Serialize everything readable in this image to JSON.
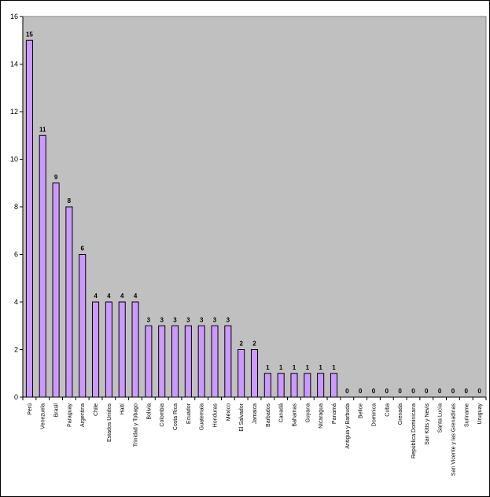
{
  "chart_data": {
    "type": "bar",
    "title": "",
    "xlabel": "",
    "ylabel": "",
    "ylim": [
      0,
      16
    ],
    "yticks": [
      0,
      2,
      4,
      6,
      8,
      10,
      12,
      14,
      16
    ],
    "grid": false,
    "legend": "none",
    "colors": {
      "bar_fill": "#cc99ff",
      "bar_stroke": "#000000",
      "plot_background": "#c0c0c0",
      "page_background": "#ffffff"
    },
    "categories": [
      "Perú",
      "Venezuela",
      "Brasil",
      "Paraguay",
      "Argentina",
      "Chile",
      "Estados Unidos",
      "Haití",
      "Trinidad y Tobago",
      "Bolivia",
      "Colombia",
      "Costa Rica",
      "Ecuador",
      "Guatemala",
      "Honduras",
      "México",
      "El Salvador",
      "Jamaica",
      "Barbados",
      "Canadá",
      "Bahamas",
      "Guyana",
      "Nicaragua",
      "Panamá",
      "Antigua y Barbuda",
      "Belice",
      "Dominica",
      "Cuba",
      "Grenada",
      "República Dominicana",
      "San Kitts y Nevis",
      "Santa Lucía",
      "San Vicente y las Grenadinas",
      "Suriname",
      "Uruguay"
    ],
    "values": [
      15,
      11,
      9,
      8,
      6,
      4,
      4,
      4,
      4,
      3,
      3,
      3,
      3,
      3,
      3,
      3,
      2,
      2,
      1,
      1,
      1,
      1,
      1,
      1,
      0,
      0,
      0,
      0,
      0,
      0,
      0,
      0,
      0,
      0,
      0
    ],
    "data_labels": [
      "15",
      "11",
      "9",
      "8",
      "6",
      "4",
      "4",
      "4",
      "4",
      "3",
      "3",
      "3",
      "3",
      "3",
      "3",
      "3",
      "2",
      "2",
      "1",
      "1",
      "1",
      "1",
      "1",
      "1",
      "0",
      "0",
      "0",
      "0",
      "0",
      "0",
      "0",
      "0",
      "0",
      "0",
      "0"
    ]
  }
}
